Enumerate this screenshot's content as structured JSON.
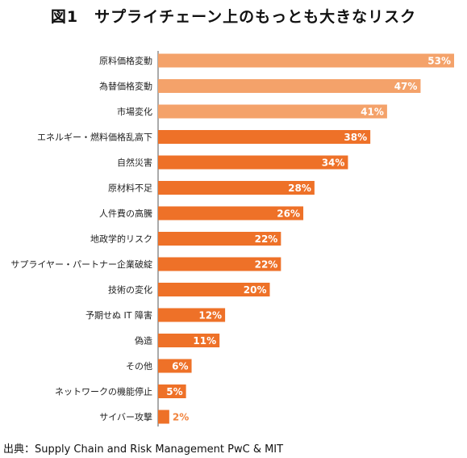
{
  "chart_data": {
    "type": "bar",
    "orientation": "horizontal",
    "title": "図1　サプライチェーン上のもっとも大きなリスク",
    "categories": [
      "原料価格変動",
      "為替価格変動",
      "市場変化",
      "エネルギー・燃料価格乱高下",
      "自然災害",
      "原材料不足",
      "人件費の高騰",
      "地政学的リスク",
      "サプライヤー・パートナー企業破綻",
      "技術の変化",
      "予期せぬ IT 障害",
      "偽造",
      "その他",
      "ネットワークの機能停止",
      "サイバー攻撃"
    ],
    "values": [
      53,
      47,
      41,
      38,
      34,
      28,
      26,
      22,
      22,
      20,
      12,
      11,
      6,
      5,
      2
    ],
    "value_labels": [
      "53%",
      "47%",
      "41%",
      "38%",
      "34%",
      "28%",
      "26%",
      "22%",
      "22%",
      "20%",
      "12%",
      "11%",
      "6%",
      "5%",
      "2%"
    ],
    "xlim": [
      0,
      53
    ],
    "grid": false,
    "colors": {
      "light": "#f4a26a",
      "dark": "#ee7128",
      "label_light": "#ffffff",
      "label_dark": "#f1833d"
    },
    "light_bar_count": 3
  },
  "source": "出典：Supply Chain and Risk Management PwC & MIT"
}
